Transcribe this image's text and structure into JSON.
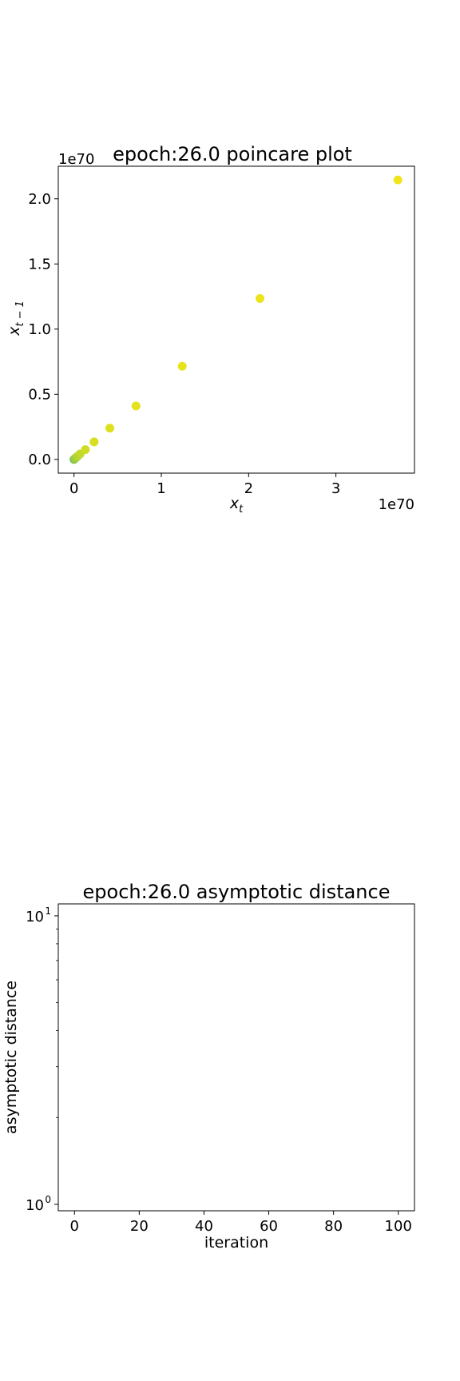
{
  "chart_data": [
    {
      "type": "scatter",
      "title": "epoch:26.0 poincare plot",
      "xlabel": "x",
      "xlabel_sub": "t",
      "ylabel": "x",
      "ylabel_sub": "t − 1",
      "x_offset_label": "1e70",
      "y_offset_label": "1e70",
      "xlim": [
        -0.18,
        3.9
      ],
      "ylim": [
        -0.105,
        2.25
      ],
      "xticks": [
        0,
        1,
        2,
        3
      ],
      "xtick_labels": [
        "0",
        "1",
        "2",
        "3"
      ],
      "yticks": [
        0.0,
        0.5,
        1.0,
        1.5,
        2.0
      ],
      "ytick_labels": [
        "0.0",
        "0.5",
        "1.0",
        "1.5",
        "2.0"
      ],
      "units": "1e70",
      "points": [
        {
          "x": 0.0,
          "y": 0.0,
          "color": "#7cc25a"
        },
        {
          "x": 0.01,
          "y": 0.006,
          "color": "#8fc94d"
        },
        {
          "x": 0.02,
          "y": 0.012,
          "color": "#a0cf40"
        },
        {
          "x": 0.04,
          "y": 0.024,
          "color": "#b4d535"
        },
        {
          "x": 0.07,
          "y": 0.042,
          "color": "#c3d92c"
        },
        {
          "x": 0.13,
          "y": 0.075,
          "color": "#cfdc26"
        },
        {
          "x": 0.23,
          "y": 0.135,
          "color": "#d8de22"
        },
        {
          "x": 0.41,
          "y": 0.24,
          "color": "#dfe01e"
        },
        {
          "x": 0.71,
          "y": 0.41,
          "color": "#e4e11d"
        },
        {
          "x": 1.24,
          "y": 0.715,
          "color": "#e8e21c"
        },
        {
          "x": 2.13,
          "y": 1.235,
          "color": "#ece31b"
        },
        {
          "x": 3.71,
          "y": 2.145,
          "color": "#f2e41b"
        }
      ]
    },
    {
      "type": "line",
      "title": "epoch:26.0 asymptotic distance",
      "xlabel": "iteration",
      "ylabel": "asymptotic distance",
      "xlim": [
        -5,
        105
      ],
      "ylim": [
        0.95,
        11
      ],
      "yscale": "log",
      "xticks": [
        0,
        20,
        40,
        60,
        80,
        100
      ],
      "xtick_labels": [
        "0",
        "20",
        "40",
        "60",
        "80",
        "100"
      ],
      "ytick_labels": [
        {
          "base": "10",
          "exp": "1"
        },
        {
          "base": "10",
          "exp": "0"
        }
      ],
      "series": []
    }
  ]
}
